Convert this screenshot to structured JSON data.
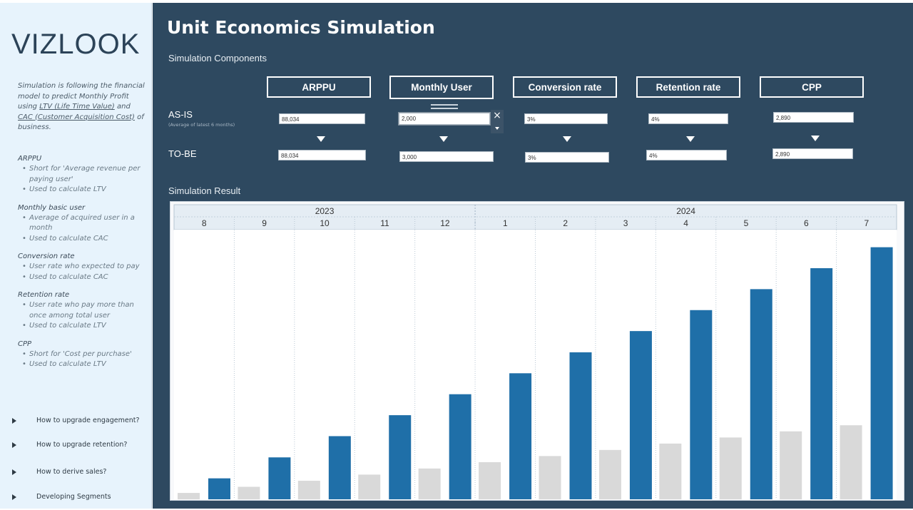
{
  "sidebar": {
    "logo": "VIZLOOK",
    "intro": {
      "p1": "Simulation is following the financial model to predict Monthly Profit using ",
      "ltv": "LTV (Life Time Value)",
      "and": " and ",
      "cac": "CAC (Customer Acquisition Cost)",
      "p2": " of business."
    },
    "definitions": [
      {
        "title": "ARPPU",
        "bullets": [
          "Short for 'Average revenue per paying user'",
          "Used to calculate LTV"
        ]
      },
      {
        "title": "Monthly basic user",
        "bullets": [
          "Average of acquired user in a month",
          "Used to calculate CAC"
        ]
      },
      {
        "title": "Conversion rate",
        "bullets": [
          "User rate who expected to pay",
          "Used to calculate CAC"
        ]
      },
      {
        "title": "Retention rate",
        "bullets": [
          "User rate who pay more than once among total user",
          "Used to calculate LTV"
        ]
      },
      {
        "title": "CPP",
        "bullets": [
          "Short for 'Cost per purchase'",
          "Used to calculate LTV"
        ]
      }
    ],
    "links": [
      "How to upgrade engagement?",
      "How to upgrade retention?",
      "How to derive sales?",
      "Developing Segments"
    ]
  },
  "header": {
    "title": "Unit Economics Simulation"
  },
  "components": {
    "section_label": "Simulation Components",
    "buttons": [
      "ARPPU",
      "Monthly User",
      "Conversion rate",
      "Retention rate",
      "CPP"
    ],
    "asis_label": "AS-IS",
    "asis_sub": "(Average of latest 6 months)",
    "tobe_label": "TO-BE",
    "asis_values": [
      "88,034",
      "2,000",
      "3%",
      "4%",
      "2,890"
    ],
    "tobe_values": [
      "88,034",
      "3,000",
      "3%",
      "4%",
      "2,890"
    ],
    "clear_icon": "×"
  },
  "result": {
    "section_label": "Simulation Result"
  },
  "colors": {
    "main_bg": "#2e4960",
    "tobe_bar": "#1f6fa8",
    "asis_bar": "#d9d9d9"
  },
  "chart_data": {
    "type": "bar",
    "title": "",
    "years": [
      {
        "label": "2023",
        "span": 5
      },
      {
        "label": "2024",
        "span": 7
      }
    ],
    "categories": [
      "8",
      "9",
      "10",
      "11",
      "12",
      "1",
      "2",
      "3",
      "4",
      "5",
      "6",
      "7"
    ],
    "ylim": [
      0,
      1000
    ],
    "series": [
      {
        "name": "AS-IS",
        "color": "#d9d9d9",
        "values": [
          24,
          47,
          70,
          93,
          116,
          140,
          163,
          186,
          210,
          233,
          256,
          279
        ]
      },
      {
        "name": "TO-BE",
        "color": "#1f6fa8",
        "values": [
          79,
          158,
          238,
          317,
          396,
          475,
          554,
          634,
          713,
          792,
          871,
          950
        ]
      }
    ],
    "grid": false,
    "legend": "none"
  }
}
